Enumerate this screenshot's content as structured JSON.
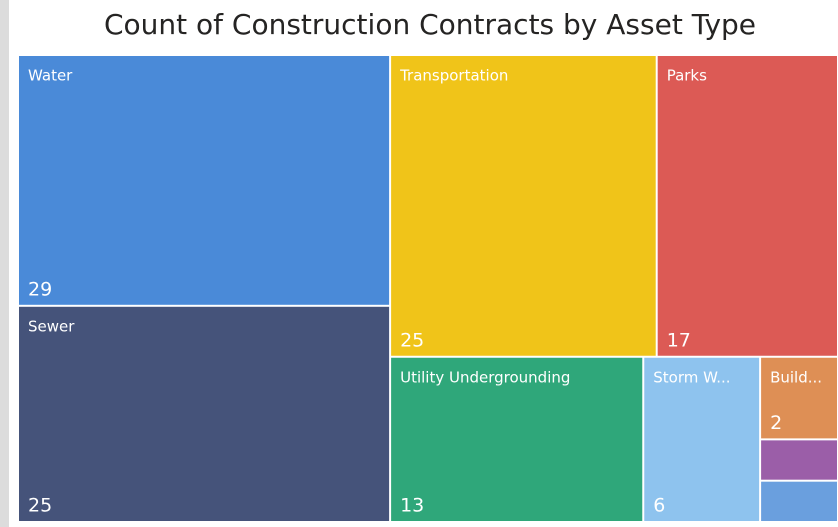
{
  "chart_data": {
    "type": "treemap",
    "title": "Count of Construction Contracts by Asset Type",
    "categories": [
      "Water",
      "Sewer",
      "Transportation",
      "Parks",
      "Utility Undergrounding",
      "Storm W...",
      "Build...",
      null,
      null
    ],
    "values": [
      29,
      25,
      25,
      17,
      13,
      6,
      2,
      1,
      1
    ],
    "colors": [
      "#4a8ad8",
      "#45537a",
      "#f0c419",
      "#dc5a55",
      "#2fa77a",
      "#8ec3ee",
      "#de8f55",
      "#9b5ea8",
      "#6a9fde"
    ]
  }
}
